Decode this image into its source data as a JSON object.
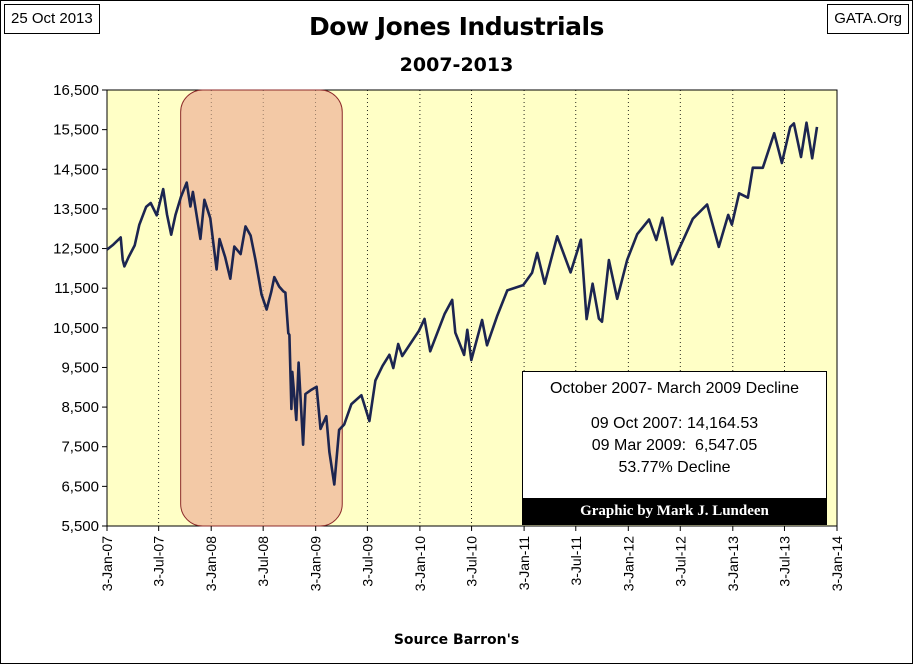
{
  "header": {
    "date": "25 Oct 2013",
    "source": "GATA.Org"
  },
  "chart_data": {
    "type": "line",
    "title": "Dow Jones Industrials",
    "subtitle": "2007-2013",
    "xlabel": "Source Barron's",
    "ylabel": "",
    "ylim": [
      5500,
      16500
    ],
    "yticks": [
      "5,500",
      "6,500",
      "7,500",
      "8,500",
      "9,500",
      "10,500",
      "11,500",
      "12,500",
      "13,500",
      "14,500",
      "15,500",
      "16,500"
    ],
    "xticks": [
      "3-Jan-07",
      "3-Jul-07",
      "3-Jan-08",
      "3-Jul-08",
      "3-Jan-09",
      "3-Jul-09",
      "3-Jan-10",
      "3-Jul-10",
      "3-Jan-11",
      "3-Jul-11",
      "3-Jan-12",
      "3-Jul-12",
      "3-Jan-13",
      "3-Jul-13",
      "3-Jan-14"
    ],
    "highlight_period": {
      "from": "2007-10-09",
      "to": "2009-03-09"
    },
    "series": [
      {
        "name": "Dow Jones Industrials",
        "color": "#1c2550",
        "points": [
          [
            "2007-01-03",
            12474
          ],
          [
            "2007-01-25",
            12600
          ],
          [
            "2007-02-20",
            12780
          ],
          [
            "2007-02-27",
            12216
          ],
          [
            "2007-03-05",
            12050
          ],
          [
            "2007-03-20",
            12290
          ],
          [
            "2007-04-10",
            12580
          ],
          [
            "2007-04-26",
            13100
          ],
          [
            "2007-05-20",
            13550
          ],
          [
            "2007-06-05",
            13650
          ],
          [
            "2007-06-26",
            13340
          ],
          [
            "2007-07-19",
            14000
          ],
          [
            "2007-08-01",
            13360
          ],
          [
            "2007-08-16",
            12850
          ],
          [
            "2007-08-31",
            13350
          ],
          [
            "2007-09-19",
            13800
          ],
          [
            "2007-10-09",
            14164
          ],
          [
            "2007-10-22",
            13560
          ],
          [
            "2007-10-31",
            13930
          ],
          [
            "2007-11-26",
            12743
          ],
          [
            "2007-12-10",
            13730
          ],
          [
            "2007-12-31",
            13264
          ],
          [
            "2008-01-22",
            11971
          ],
          [
            "2008-02-01",
            12740
          ],
          [
            "2008-02-21",
            12280
          ],
          [
            "2008-03-10",
            11740
          ],
          [
            "2008-03-24",
            12550
          ],
          [
            "2008-04-15",
            12360
          ],
          [
            "2008-05-02",
            13058
          ],
          [
            "2008-05-20",
            12830
          ],
          [
            "2008-06-06",
            12210
          ],
          [
            "2008-06-27",
            11346
          ],
          [
            "2008-07-15",
            10962
          ],
          [
            "2008-07-31",
            11400
          ],
          [
            "2008-08-11",
            11780
          ],
          [
            "2008-08-28",
            11540
          ],
          [
            "2008-09-12",
            11420
          ],
          [
            "2008-09-19",
            11388
          ],
          [
            "2008-09-29",
            10365
          ],
          [
            "2008-10-03",
            10325
          ],
          [
            "2008-10-10",
            8451
          ],
          [
            "2008-10-13",
            9387
          ],
          [
            "2008-10-27",
            8175
          ],
          [
            "2008-11-04",
            9625
          ],
          [
            "2008-11-20",
            7552
          ],
          [
            "2008-11-28",
            8830
          ],
          [
            "2008-12-16",
            8924
          ],
          [
            "2009-01-06",
            9015
          ],
          [
            "2009-01-20",
            7950
          ],
          [
            "2009-02-09",
            8270
          ],
          [
            "2009-02-20",
            7365
          ],
          [
            "2009-03-09",
            6547
          ],
          [
            "2009-03-26",
            7925
          ],
          [
            "2009-04-13",
            8060
          ],
          [
            "2009-05-08",
            8575
          ],
          [
            "2009-06-12",
            8800
          ],
          [
            "2009-07-10",
            8146
          ],
          [
            "2009-07-31",
            9172
          ],
          [
            "2009-08-25",
            9540
          ],
          [
            "2009-09-18",
            9820
          ],
          [
            "2009-10-02",
            9487
          ],
          [
            "2009-10-19",
            10092
          ],
          [
            "2009-11-02",
            9790
          ],
          [
            "2009-12-31",
            10428
          ],
          [
            "2010-01-19",
            10725
          ],
          [
            "2010-02-08",
            9908
          ],
          [
            "2010-03-31",
            10856
          ],
          [
            "2010-04-26",
            11205
          ],
          [
            "2010-05-07",
            10380
          ],
          [
            "2010-06-07",
            9816
          ],
          [
            "2010-06-18",
            10450
          ],
          [
            "2010-07-02",
            9686
          ],
          [
            "2010-08-09",
            10698
          ],
          [
            "2010-08-26",
            10060
          ],
          [
            "2010-09-30",
            10788
          ],
          [
            "2010-11-05",
            11444
          ],
          [
            "2010-12-31",
            11577
          ],
          [
            "2011-01-31",
            11891
          ],
          [
            "2011-02-18",
            12391
          ],
          [
            "2011-03-16",
            11613
          ],
          [
            "2011-04-29",
            12810
          ],
          [
            "2011-06-15",
            11897
          ],
          [
            "2011-07-21",
            12724
          ],
          [
            "2011-08-10",
            10719
          ],
          [
            "2011-08-31",
            11613
          ],
          [
            "2011-09-22",
            10733
          ],
          [
            "2011-10-03",
            10655
          ],
          [
            "2011-10-27",
            12208
          ],
          [
            "2011-11-25",
            11231
          ],
          [
            "2011-12-30",
            12217
          ],
          [
            "2012-02-03",
            12862
          ],
          [
            "2012-03-16",
            13232
          ],
          [
            "2012-04-10",
            12715
          ],
          [
            "2012-05-01",
            13279
          ],
          [
            "2012-06-04",
            12101
          ],
          [
            "2012-07-20",
            12822
          ],
          [
            "2012-08-16",
            13250
          ],
          [
            "2012-10-05",
            13610
          ],
          [
            "2012-11-15",
            12542
          ],
          [
            "2012-12-18",
            13350
          ],
          [
            "2012-12-31",
            13104
          ],
          [
            "2013-01-25",
            13895
          ],
          [
            "2013-02-25",
            13784
          ],
          [
            "2013-03-14",
            14539
          ],
          [
            "2013-04-18",
            14537
          ],
          [
            "2013-05-28",
            15409
          ],
          [
            "2013-06-24",
            14659
          ],
          [
            "2013-07-23",
            15567
          ],
          [
            "2013-08-05",
            15658
          ],
          [
            "2013-08-30",
            14810
          ],
          [
            "2013-09-18",
            15676
          ],
          [
            "2013-10-08",
            14776
          ],
          [
            "2013-10-25",
            15570
          ]
        ]
      }
    ]
  },
  "legend": {
    "heading": "October 2007- March 2009 Decline",
    "line1": "09 Oct 2007: 14,164.53",
    "line2": "09 Mar 2009:  6,547.05",
    "line3": "53.77% Decline",
    "credit": "Graphic by Mark J. Lundeen"
  }
}
